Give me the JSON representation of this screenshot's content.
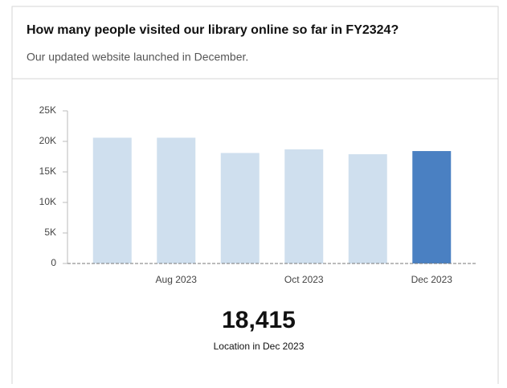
{
  "chart_data": {
    "type": "bar",
    "title": "How many people visited our library online so far in FY2324?",
    "subtitle": "Our updated website launched in December.",
    "categories": [
      null,
      "Aug 2023",
      null,
      "Oct 2023",
      null,
      "Dec 2023"
    ],
    "values": [
      20600,
      20600,
      18100,
      18700,
      17900,
      18415
    ],
    "colors": [
      "#cfdfee",
      "#cfdfee",
      "#cfdfee",
      "#cfdfee",
      "#cfdfee",
      "#4a80c2"
    ],
    "ylim": [
      0,
      25000
    ],
    "yticks": [
      {
        "value": 0,
        "label": "0"
      },
      {
        "value": 5000,
        "label": "5K"
      },
      {
        "value": 10000,
        "label": "10K"
      },
      {
        "value": 15000,
        "label": "15K"
      },
      {
        "value": 20000,
        "label": "20K"
      },
      {
        "value": 25000,
        "label": "25K"
      }
    ],
    "callout": {
      "label": "18,415",
      "caption": "Location in Dec 2023"
    }
  }
}
